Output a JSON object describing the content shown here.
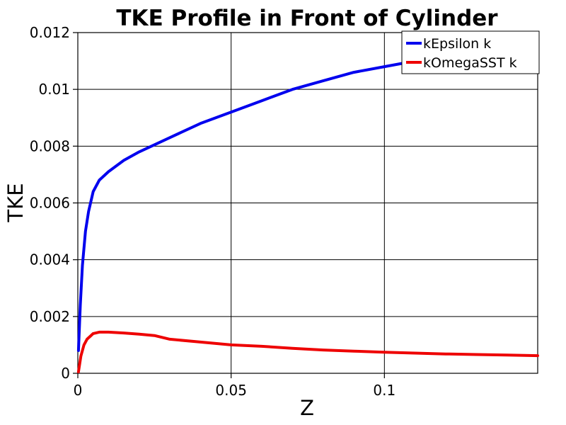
{
  "chart_data": {
    "type": "line",
    "title": "TKE Profile in Front of  Cylinder",
    "xlabel": "Z",
    "ylabel": "TKE",
    "xlim": [
      0,
      0.15
    ],
    "ylim": [
      0,
      0.012
    ],
    "x_ticks": [
      0,
      0.05,
      0.1
    ],
    "x_tick_labels": [
      "0",
      "0.05",
      "0.1"
    ],
    "y_ticks": [
      0,
      0.002,
      0.004,
      0.006,
      0.008,
      0.01,
      0.012
    ],
    "y_tick_labels": [
      "0",
      "0.002",
      "0.004",
      "0.006",
      "0.008",
      "0.01",
      "0.012"
    ],
    "grid": true,
    "legend_position": "top-right",
    "series": [
      {
        "name": "kEpsilon k",
        "color": "#0000ee",
        "x": [
          0.0002,
          0.0008,
          0.0015,
          0.0025,
          0.0035,
          0.005,
          0.007,
          0.01,
          0.015,
          0.02,
          0.03,
          0.04,
          0.05,
          0.06,
          0.07,
          0.08,
          0.09,
          0.1,
          0.11,
          0.12
        ],
        "y": [
          0.0008,
          0.0024,
          0.0038,
          0.005,
          0.0057,
          0.0064,
          0.0068,
          0.0071,
          0.0075,
          0.0078,
          0.0083,
          0.0088,
          0.0092,
          0.0096,
          0.01,
          0.0103,
          0.0106,
          0.0108,
          0.011,
          0.0112
        ]
      },
      {
        "name": "kOmegaSST k",
        "color": "#ee0000",
        "x": [
          0.0002,
          0.001,
          0.002,
          0.003,
          0.005,
          0.007,
          0.01,
          0.015,
          0.02,
          0.025,
          0.03,
          0.04,
          0.05,
          0.06,
          0.07,
          0.08,
          0.09,
          0.1,
          0.11,
          0.12,
          0.13,
          0.14,
          0.15
        ],
        "y": [
          5e-05,
          0.0006,
          0.001,
          0.0012,
          0.0014,
          0.00145,
          0.00145,
          0.00142,
          0.00138,
          0.00133,
          0.0012,
          0.0011,
          0.001,
          0.00095,
          0.00088,
          0.00082,
          0.00078,
          0.00074,
          0.00071,
          0.00068,
          0.00066,
          0.00064,
          0.00062
        ]
      }
    ]
  }
}
